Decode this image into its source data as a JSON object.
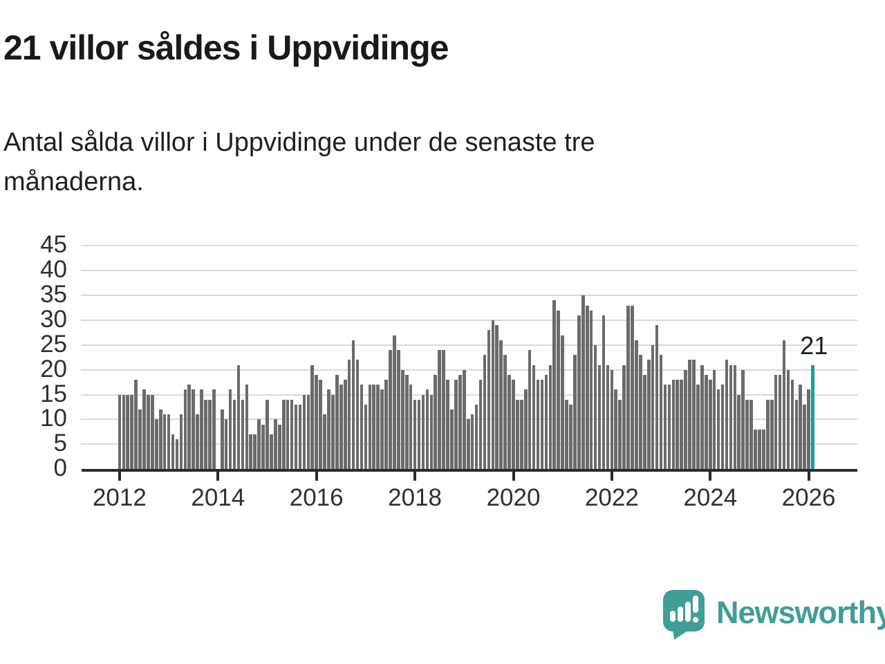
{
  "title": "21 villor såldes i Uppvidinge",
  "subtitle_lines": [
    "Antal sålda villor i Uppvidinge under de senaste tre",
    "månaderna."
  ],
  "annotation": {
    "label": "21"
  },
  "logo": {
    "text": "Newsworthy"
  },
  "colors": {
    "bar": "#6a6b6f",
    "highlight": "#0fa3a1",
    "grid": "#d9d9d9",
    "axis": "#2b2b2b",
    "logo_teal": "#3f9e97"
  },
  "chart_data": {
    "type": "bar",
    "title": "21 villor såldes i Uppvidinge",
    "subtitle": "Antal sålda villor i Uppvidinge under de senaste tre månaderna.",
    "x_start": "2012-01",
    "x_end": "2026-02",
    "frequency": "monthly",
    "note": "rolling 3-month count of house sales; 2014-01 shown as gap (0)",
    "x_tick_labels": [
      "2012",
      "2014",
      "2016",
      "2018",
      "2020",
      "2022",
      "2024",
      "2026"
    ],
    "y_ticks": [
      0,
      5,
      10,
      15,
      20,
      25,
      30,
      35,
      40,
      45
    ],
    "ylim": [
      0,
      45
    ],
    "grid": true,
    "values": [
      15,
      15,
      15,
      15,
      18,
      12,
      16,
      15,
      15,
      10,
      12,
      11,
      11,
      7,
      6,
      11,
      16,
      17,
      16,
      11,
      16,
      14,
      14,
      16,
      0,
      12,
      10,
      16,
      14,
      21,
      14,
      17,
      7,
      7,
      10,
      9,
      14,
      7,
      10,
      9,
      14,
      14,
      14,
      13,
      13,
      15,
      15,
      21,
      19,
      18,
      11,
      16,
      15,
      19,
      17,
      18,
      22,
      26,
      22,
      17,
      13,
      17,
      17,
      17,
      16,
      18,
      24,
      27,
      24,
      20,
      19,
      17,
      14,
      14,
      15,
      16,
      15,
      19,
      24,
      24,
      18,
      12,
      18,
      19,
      20,
      10,
      11,
      13,
      18,
      23,
      28,
      30,
      29,
      26,
      23,
      19,
      18,
      14,
      14,
      16,
      24,
      21,
      18,
      18,
      19,
      21,
      34,
      32,
      27,
      14,
      13,
      23,
      31,
      35,
      33,
      32,
      25,
      21,
      31,
      21,
      20,
      16,
      14,
      21,
      33,
      33,
      26,
      23,
      19,
      22,
      25,
      29,
      23,
      17,
      17,
      18,
      18,
      18,
      20,
      22,
      22,
      17,
      21,
      19,
      18,
      20,
      16,
      17,
      22,
      21,
      21,
      15,
      20,
      14,
      14,
      8,
      8,
      8,
      14,
      14,
      19,
      19,
      26,
      20,
      18,
      14,
      17,
      13,
      16,
      21
    ],
    "highlight": {
      "last_bar": true,
      "value": 21,
      "label": "21"
    }
  }
}
